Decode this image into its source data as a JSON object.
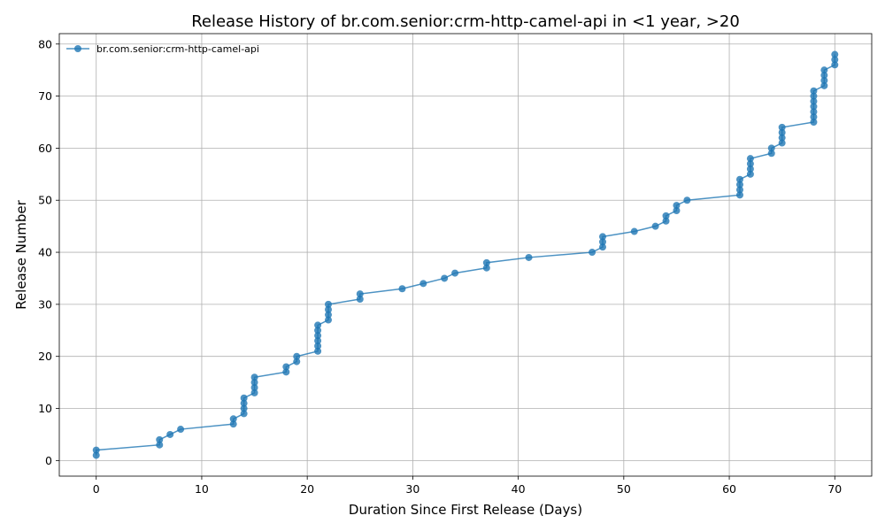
{
  "chart_data": {
    "type": "line",
    "title": "Release History of br.com.senior:crm-http-camel-api in <1 year, >20",
    "xlabel": "Duration Since First Release (Days)",
    "ylabel": "Release Number",
    "xlim": [
      -3.5,
      73.5
    ],
    "ylim": [
      -3,
      82
    ],
    "xticks": [
      0,
      10,
      20,
      30,
      40,
      50,
      60,
      70
    ],
    "yticks": [
      0,
      10,
      20,
      30,
      40,
      50,
      60,
      70,
      80
    ],
    "grid": true,
    "legend_position": "top-left",
    "series": [
      {
        "name": "br.com.senior:crm-http-camel-api",
        "color": "#1f77b4",
        "marker": "circle",
        "x": [
          0,
          0,
          6,
          6,
          7,
          8,
          13,
          13,
          14,
          14,
          14,
          14,
          15,
          15,
          15,
          15,
          18,
          18,
          19,
          19,
          21,
          21,
          21,
          21,
          21,
          21,
          22,
          22,
          22,
          22,
          25,
          25,
          29,
          31,
          33,
          34,
          37,
          37,
          41,
          47,
          48,
          48,
          48,
          51,
          53,
          54,
          54,
          55,
          55,
          56,
          61,
          61,
          61,
          61,
          62,
          62,
          62,
          62,
          64,
          64,
          65,
          65,
          65,
          65,
          68,
          68,
          68,
          68,
          68,
          68,
          68,
          69,
          69,
          69,
          69,
          70,
          70,
          70
        ],
        "y": [
          1,
          2,
          3,
          4,
          5,
          6,
          7,
          8,
          9,
          10,
          11,
          12,
          13,
          14,
          15,
          16,
          17,
          18,
          19,
          20,
          21,
          22,
          23,
          24,
          25,
          26,
          27,
          28,
          29,
          30,
          31,
          32,
          33,
          34,
          35,
          36,
          37,
          38,
          39,
          40,
          41,
          42,
          43,
          44,
          45,
          46,
          47,
          48,
          49,
          50,
          51,
          52,
          53,
          54,
          55,
          56,
          57,
          58,
          59,
          60,
          61,
          62,
          63,
          64,
          65,
          66,
          67,
          68,
          69,
          70,
          71,
          72,
          73,
          74,
          75,
          76,
          77,
          78
        ]
      }
    ]
  }
}
